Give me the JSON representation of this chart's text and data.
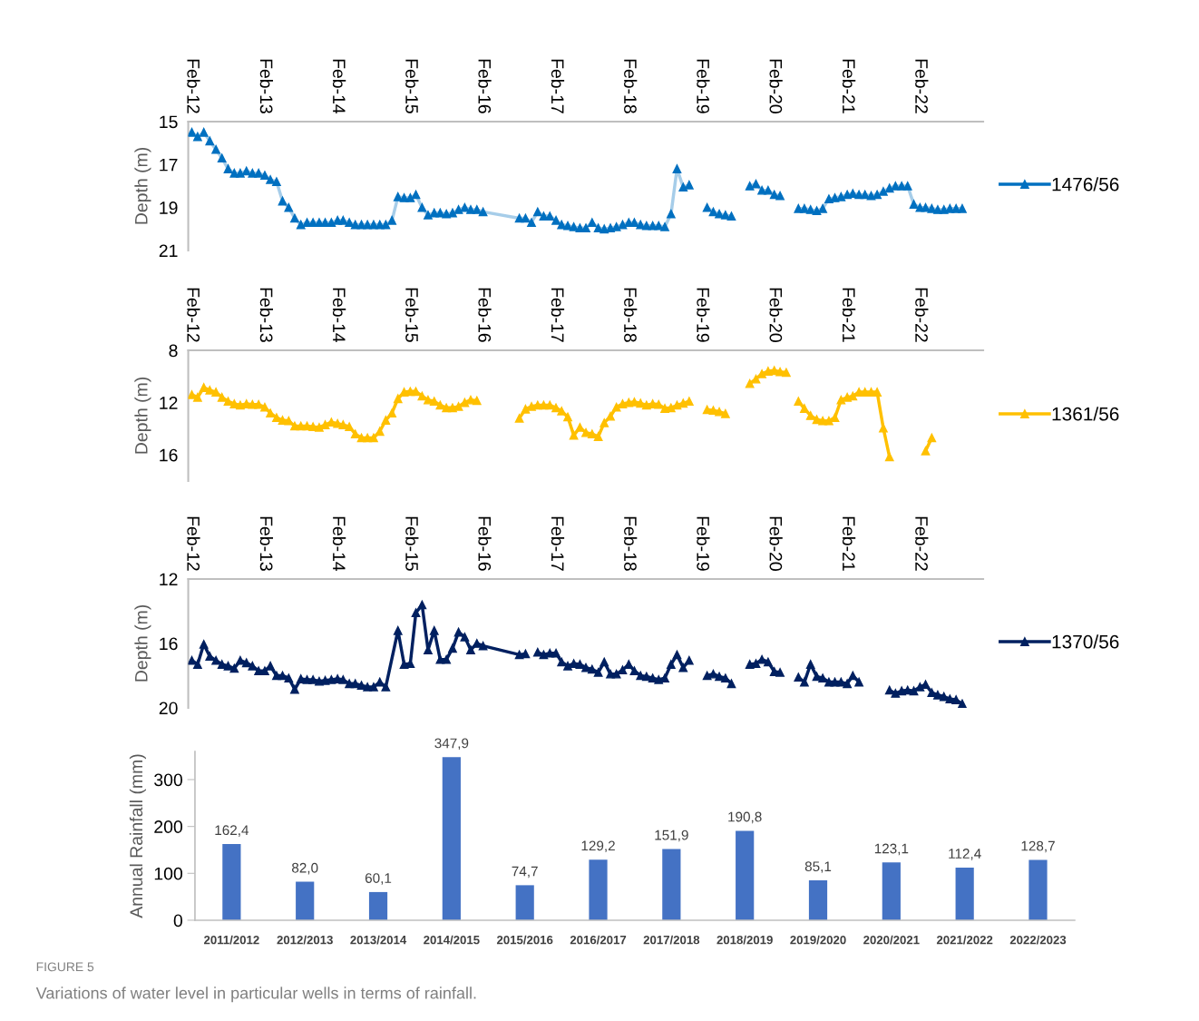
{
  "chart_data": [
    {
      "type": "line",
      "ylabel": "Depth (m)",
      "xlim": [
        "2012-01-14",
        "2022-12-15"
      ],
      "ylim": [
        21,
        15
      ],
      "yticks": [
        15,
        17,
        19,
        21
      ],
      "xticks": [
        {
          "value": "2012-02",
          "label": "Feb-12"
        },
        {
          "value": "2013-02",
          "label": "Feb-13"
        },
        {
          "value": "2014-02",
          "label": "Feb-14"
        },
        {
          "value": "2015-02",
          "label": "Feb-15"
        },
        {
          "value": "2016-02",
          "label": "Feb-16"
        },
        {
          "value": "2017-02",
          "label": "Feb-17"
        },
        {
          "value": "2018-02",
          "label": "Feb-18"
        },
        {
          "value": "2019-02",
          "label": "Feb-19"
        },
        {
          "value": "2020-02",
          "label": "Feb-20"
        },
        {
          "value": "2021-02",
          "label": "Feb-21"
        },
        {
          "value": "2022-02",
          "label": "Feb-22"
        }
      ],
      "marker": "triangle",
      "legend": "right",
      "grid": false,
      "series": [
        {
          "name": "1476/56",
          "color": "#0070c0",
          "x": [
            "2012-02",
            "2012-03",
            "2012-04",
            "2012-05",
            "2012-06",
            "2012-07",
            "2012-08",
            "2012-09",
            "2012-10",
            "2012-11",
            "2012-12",
            "2013-01",
            "2013-02",
            "2013-03",
            "2013-04",
            "2013-05",
            "2013-06",
            "2013-07",
            "2013-08",
            "2013-09",
            "2013-10",
            "2013-11",
            "2013-12",
            "2014-01",
            "2014-02",
            "2014-03",
            "2014-04",
            "2014-05",
            "2014-06",
            "2014-07",
            "2014-08",
            "2014-09",
            "2014-10",
            "2014-11",
            "2014-12",
            "2015-01",
            "2015-02",
            "2015-03",
            "2015-04",
            "2015-05",
            "2015-06",
            "2015-07",
            "2015-08",
            "2015-09",
            "2015-10",
            "2015-11",
            "2015-12",
            "2016-01",
            "2016-02",
            "2016-08",
            "2016-09",
            "2016-10",
            "2016-11",
            "2016-12",
            "2017-01",
            "2017-02",
            "2017-03",
            "2017-04",
            "2017-05",
            "2017-06",
            "2017-07",
            "2017-08",
            "2017-09",
            "2017-10",
            "2017-11",
            "2017-12",
            "2018-01",
            "2018-02",
            "2018-03",
            "2018-04",
            "2018-05",
            "2018-06",
            "2018-07",
            "2018-08",
            "2018-09",
            "2018-10",
            "2018-11",
            "2018-12",
            "2019-01",
            "2019-03",
            "2019-04",
            "2019-05",
            "2019-06",
            "2019-07",
            "2019-08",
            "2019-10",
            "2019-11",
            "2019-12",
            "2020-01",
            "2020-02",
            "2020-03",
            "2020-04",
            "2020-06",
            "2020-07",
            "2020-08",
            "2020-09",
            "2020-10",
            "2020-11",
            "2020-12",
            "2021-01",
            "2021-02",
            "2021-03",
            "2021-04",
            "2021-05",
            "2021-06",
            "2021-07",
            "2021-08",
            "2021-09",
            "2021-10",
            "2021-11",
            "2021-12",
            "2022-01",
            "2022-02",
            "2022-03",
            "2022-04",
            "2022-05",
            "2022-06",
            "2022-07",
            "2022-08",
            "2022-09"
          ],
          "values": [
            15.5,
            15.7,
            15.5,
            15.9,
            16.3,
            16.7,
            17.2,
            17.4,
            17.4,
            17.3,
            17.4,
            17.4,
            17.5,
            17.7,
            17.8,
            18.7,
            19.0,
            19.5,
            19.8,
            19.7,
            19.7,
            19.7,
            19.7,
            19.7,
            19.6,
            19.6,
            19.7,
            19.8,
            19.8,
            19.8,
            19.8,
            19.8,
            19.8,
            19.6,
            18.5,
            18.55,
            18.55,
            18.4,
            19.0,
            19.35,
            19.25,
            19.25,
            19.3,
            19.25,
            19.1,
            19.0,
            19.1,
            19.1,
            19.2,
            19.5,
            19.5,
            19.7,
            19.2,
            19.4,
            19.4,
            19.6,
            19.8,
            19.85,
            19.9,
            19.95,
            19.95,
            19.7,
            19.95,
            20.0,
            19.95,
            19.9,
            19.8,
            19.7,
            19.7,
            19.8,
            19.85,
            19.85,
            19.85,
            19.9,
            19.3,
            17.2,
            18.05,
            17.95,
            null,
            19.0,
            19.2,
            19.3,
            19.35,
            19.4,
            null,
            18.0,
            17.9,
            18.2,
            18.2,
            18.4,
            18.45,
            null,
            19.05,
            19.05,
            19.1,
            19.15,
            19.05,
            18.6,
            18.55,
            18.5,
            18.4,
            18.35,
            18.4,
            18.4,
            18.45,
            18.4,
            18.25,
            18.1,
            18.0,
            18.0,
            18.0,
            18.85,
            19.0,
            19.0,
            19.05,
            19.1,
            19.1,
            19.05,
            19.05,
            19.05
          ]
        }
      ]
    },
    {
      "type": "line",
      "ylabel": "Depth (m)",
      "xlim": [
        "2012-01-14",
        "2022-12-15"
      ],
      "ylim": [
        18,
        8
      ],
      "yticks": [
        8,
        12,
        16
      ],
      "xticks": [
        {
          "value": "2012-02",
          "label": "Feb-12"
        },
        {
          "value": "2013-02",
          "label": "Feb-13"
        },
        {
          "value": "2014-02",
          "label": "Feb-14"
        },
        {
          "value": "2015-02",
          "label": "Feb-15"
        },
        {
          "value": "2016-02",
          "label": "Feb-16"
        },
        {
          "value": "2017-02",
          "label": "Feb-17"
        },
        {
          "value": "2018-02",
          "label": "Feb-18"
        },
        {
          "value": "2019-02",
          "label": "Feb-19"
        },
        {
          "value": "2020-02",
          "label": "Feb-20"
        },
        {
          "value": "2021-02",
          "label": "Feb-21"
        },
        {
          "value": "2022-02",
          "label": "Feb-22"
        }
      ],
      "marker": "triangle",
      "legend": "right",
      "grid": false,
      "series": [
        {
          "name": "1361/56",
          "color": "#ffc000",
          "x": [
            "2012-02",
            "2012-03",
            "2012-04",
            "2012-05",
            "2012-06",
            "2012-07",
            "2012-08",
            "2012-09",
            "2012-10",
            "2012-11",
            "2012-12",
            "2013-01",
            "2013-02",
            "2013-03",
            "2013-04",
            "2013-05",
            "2013-06",
            "2013-07",
            "2013-08",
            "2013-09",
            "2013-10",
            "2013-11",
            "2013-12",
            "2014-01",
            "2014-02",
            "2014-03",
            "2014-04",
            "2014-05",
            "2014-06",
            "2014-07",
            "2014-08",
            "2014-09",
            "2014-10",
            "2014-11",
            "2014-12",
            "2015-01",
            "2015-02",
            "2015-03",
            "2015-04",
            "2015-05",
            "2015-06",
            "2015-07",
            "2015-08",
            "2015-09",
            "2015-10",
            "2015-11",
            "2015-12",
            "2016-01",
            "2016-02",
            "2016-08",
            "2016-09",
            "2016-10",
            "2016-11",
            "2016-12",
            "2017-01",
            "2017-02",
            "2017-03",
            "2017-04",
            "2017-05",
            "2017-06",
            "2017-07",
            "2017-08",
            "2017-09",
            "2017-10",
            "2017-11",
            "2017-12",
            "2018-01",
            "2018-02",
            "2018-03",
            "2018-04",
            "2018-05",
            "2018-06",
            "2018-07",
            "2018-08",
            "2018-09",
            "2018-10",
            "2018-11",
            "2018-12",
            "2019-01",
            "2019-03",
            "2019-04",
            "2019-05",
            "2019-06",
            "2019-07",
            "2019-10",
            "2019-11",
            "2019-12",
            "2020-01",
            "2020-02",
            "2020-03",
            "2020-04",
            "2020-05",
            "2020-06",
            "2020-07",
            "2020-08",
            "2020-09",
            "2020-10",
            "2020-11",
            "2020-12",
            "2021-01",
            "2021-02",
            "2021-03",
            "2021-04",
            "2021-05",
            "2021-06",
            "2021-07",
            "2021-08",
            "2021-09",
            "2021-10",
            "2022-03",
            "2022-04"
          ],
          "values": [
            11.4,
            11.6,
            10.85,
            11.05,
            11.2,
            11.6,
            11.9,
            12.1,
            12.2,
            12.1,
            12.15,
            12.15,
            12.35,
            12.8,
            13.15,
            13.35,
            13.4,
            13.8,
            13.8,
            13.8,
            13.85,
            13.9,
            13.7,
            13.5,
            13.6,
            13.7,
            13.85,
            14.4,
            14.7,
            14.7,
            14.7,
            14.2,
            13.35,
            12.8,
            11.7,
            11.2,
            11.15,
            11.15,
            11.5,
            11.8,
            11.9,
            12.2,
            12.4,
            12.4,
            12.3,
            12.0,
            11.8,
            11.85,
            null,
            13.2,
            12.5,
            12.3,
            12.2,
            12.2,
            12.2,
            12.4,
            12.65,
            13.1,
            14.5,
            13.9,
            14.3,
            14.4,
            14.6,
            13.55,
            13.05,
            12.35,
            12.1,
            12.0,
            11.95,
            12.05,
            12.2,
            12.1,
            12.15,
            12.45,
            12.4,
            12.2,
            12.05,
            11.9,
            null,
            12.55,
            12.6,
            12.7,
            12.85,
            null,
            10.55,
            10.2,
            9.8,
            9.6,
            9.55,
            9.65,
            9.7,
            null,
            11.9,
            12.45,
            13.0,
            13.3,
            13.4,
            13.4,
            13.15,
            11.8,
            11.6,
            11.5,
            11.2,
            11.2,
            11.2,
            11.2,
            13.95,
            16.15,
            null,
            15.7,
            14.7
          ]
        }
      ]
    },
    {
      "type": "line",
      "ylabel": "Depth (m)",
      "xlim": [
        "2012-01-14",
        "2022-12-15"
      ],
      "ylim": [
        20,
        12
      ],
      "yticks": [
        12,
        16,
        20
      ],
      "xticks": [
        {
          "value": "2012-02",
          "label": "Feb-12"
        },
        {
          "value": "2013-02",
          "label": "Feb-13"
        },
        {
          "value": "2014-02",
          "label": "Feb-14"
        },
        {
          "value": "2015-02",
          "label": "Feb-15"
        },
        {
          "value": "2016-02",
          "label": "Feb-16"
        },
        {
          "value": "2017-02",
          "label": "Feb-17"
        },
        {
          "value": "2018-02",
          "label": "Feb-18"
        },
        {
          "value": "2019-02",
          "label": "Feb-19"
        },
        {
          "value": "2020-02",
          "label": "Feb-20"
        },
        {
          "value": "2021-02",
          "label": "Feb-21"
        },
        {
          "value": "2022-02",
          "label": "Feb-22"
        }
      ],
      "marker": "triangle",
      "legend": "right",
      "grid": false,
      "series": [
        {
          "name": "1370/56",
          "color": "#002060",
          "x": [
            "2012-02",
            "2012-03",
            "2012-04",
            "2012-05",
            "2012-06",
            "2012-07",
            "2012-08",
            "2012-09",
            "2012-10",
            "2012-11",
            "2012-12",
            "2013-01",
            "2013-02",
            "2013-03",
            "2013-04",
            "2013-05",
            "2013-06",
            "2013-07",
            "2013-08",
            "2013-09",
            "2013-10",
            "2013-11",
            "2013-12",
            "2014-01",
            "2014-02",
            "2014-03",
            "2014-04",
            "2014-05",
            "2014-06",
            "2014-07",
            "2014-08",
            "2014-09",
            "2014-10",
            "2014-12",
            "2015-01",
            "2015-02",
            "2015-03",
            "2015-04",
            "2015-05",
            "2015-06",
            "2015-07",
            "2015-08",
            "2015-09",
            "2015-10",
            "2015-11",
            "2015-12",
            "2016-01",
            "2016-02",
            "2016-08",
            "2016-09",
            "2016-10",
            "2016-11",
            "2016-12",
            "2017-01",
            "2017-02",
            "2017-03",
            "2017-04",
            "2017-05",
            "2017-06",
            "2017-07",
            "2017-08",
            "2017-09",
            "2017-10",
            "2017-11",
            "2017-12",
            "2018-01",
            "2018-02",
            "2018-03",
            "2018-04",
            "2018-05",
            "2018-06",
            "2018-07",
            "2018-08",
            "2018-09",
            "2018-10",
            "2018-11",
            "2018-12",
            "2019-01",
            "2019-03",
            "2019-04",
            "2019-05",
            "2019-06",
            "2019-07",
            "2019-08",
            "2019-10",
            "2019-11",
            "2019-12",
            "2020-01",
            "2020-02",
            "2020-03",
            "2020-04",
            "2020-06",
            "2020-07",
            "2020-08",
            "2020-09",
            "2020-10",
            "2020-11",
            "2020-12",
            "2021-01",
            "2021-02",
            "2021-03",
            "2021-04",
            "2021-05",
            "2021-09",
            "2021-10",
            "2021-11",
            "2021-12",
            "2022-01",
            "2022-02",
            "2022-03",
            "2022-04",
            "2022-05",
            "2022-06",
            "2022-07",
            "2022-08",
            "2022-09"
          ],
          "values": [
            17.05,
            17.3,
            16.05,
            16.8,
            17.05,
            17.3,
            17.4,
            17.55,
            17.05,
            17.2,
            17.4,
            17.7,
            17.7,
            17.4,
            18.0,
            18.0,
            18.15,
            18.85,
            18.2,
            18.25,
            18.25,
            18.35,
            18.3,
            18.25,
            18.2,
            18.25,
            18.5,
            18.5,
            18.6,
            18.7,
            18.7,
            18.4,
            18.7,
            15.2,
            17.3,
            17.25,
            14.1,
            13.6,
            16.4,
            15.2,
            17.0,
            17.0,
            16.3,
            15.3,
            15.6,
            16.4,
            16.0,
            16.15,
            16.7,
            16.65,
            null,
            16.55,
            16.7,
            16.6,
            16.6,
            17.15,
            17.4,
            17.25,
            17.3,
            17.5,
            17.6,
            17.8,
            17.15,
            17.9,
            17.9,
            17.65,
            17.3,
            17.7,
            18.0,
            18.05,
            18.15,
            18.25,
            18.15,
            17.3,
            16.7,
            17.5,
            17.05,
            null,
            18.0,
            17.9,
            18.05,
            18.15,
            18.5,
            null,
            17.3,
            17.25,
            17.0,
            17.15,
            17.75,
            17.8,
            null,
            18.1,
            18.4,
            17.3,
            18.05,
            18.15,
            18.4,
            18.4,
            18.4,
            18.5,
            18.0,
            18.4,
            null,
            18.9,
            19.1,
            18.95,
            18.9,
            18.95,
            18.7,
            18.55,
            19.05,
            19.2,
            19.3,
            19.45,
            19.5,
            19.75
          ]
        }
      ]
    },
    {
      "type": "bar",
      "ylabel": "Annual Rainfall (mm)",
      "ylim": [
        0,
        360
      ],
      "yticks": [
        0,
        100,
        200,
        300
      ],
      "grid": false,
      "color": "#4472c4",
      "categories": [
        "2011/2012",
        "2012/2013",
        "2013/2014",
        "2014/2015",
        "2015/2016",
        "2016/2017",
        "2017/2018",
        "2018/2019",
        "2019/2020",
        "2020/2021",
        "2021/2022",
        "2022/2023"
      ],
      "values": [
        162.4,
        82.0,
        60.1,
        347.9,
        74.7,
        129.2,
        151.9,
        190.8,
        85.1,
        123.1,
        112.4,
        128.7
      ],
      "value_labels": [
        "162,4",
        "82,0",
        "60,1",
        "347,9",
        "74,7",
        "129,2",
        "151,9",
        "190,8",
        "85,1",
        "123,1",
        "112,4",
        "128,7"
      ],
      "annotations": [
        "FIGURE 5",
        "Variations of water level in particular wells in terms of rainfall."
      ]
    }
  ]
}
